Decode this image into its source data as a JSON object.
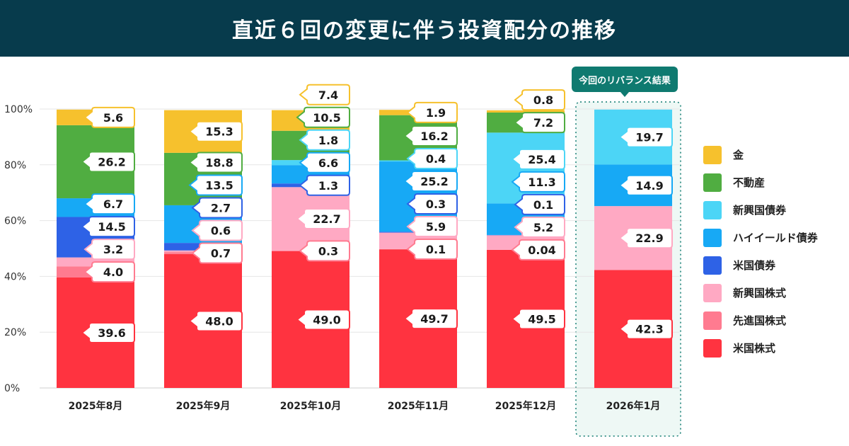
{
  "title": "直近６回の変更に伴う投資配分の推移",
  "callout": "今回のリバランス結果",
  "chart_data": {
    "type": "bar",
    "stacked": true,
    "categories": [
      "2025年8月",
      "2025年9月",
      "2025年10月",
      "2025年11月",
      "2025年12月",
      "2026年1月"
    ],
    "ylim": [
      0,
      100
    ],
    "yticks": [
      "0%",
      "20%",
      "40%",
      "60%",
      "80%",
      "100%"
    ],
    "highlight_index": 5,
    "series": [
      {
        "name": "米国株式",
        "color": "#ff3340",
        "values": [
          39.6,
          48.0,
          49.0,
          49.7,
          49.5,
          42.3
        ]
      },
      {
        "name": "先進国株式",
        "color": "#ff7b90",
        "values": [
          4.0,
          0.7,
          0.3,
          0.1,
          0.04,
          0
        ]
      },
      {
        "name": "新興国株式",
        "color": "#ffa9c3",
        "values": [
          3.2,
          0.6,
          22.7,
          5.9,
          5.2,
          22.9
        ]
      },
      {
        "name": "米国債券",
        "color": "#2e62e6",
        "values": [
          14.5,
          2.7,
          1.3,
          0.3,
          0.1,
          0
        ]
      },
      {
        "name": "ハイイールド債券",
        "color": "#17a9f5",
        "values": [
          6.7,
          13.5,
          6.6,
          25.2,
          11.3,
          14.9
        ]
      },
      {
        "name": "新興国債券",
        "color": "#4cd5f6",
        "values": [
          0,
          0,
          1.8,
          0.4,
          25.4,
          19.7
        ]
      },
      {
        "name": "不動産",
        "color": "#50ad41",
        "values": [
          26.2,
          18.8,
          10.5,
          16.2,
          7.2,
          0
        ]
      },
      {
        "name": "金",
        "color": "#f6c12d",
        "values": [
          5.6,
          15.3,
          7.4,
          1.9,
          0.8,
          0
        ]
      }
    ],
    "labels": [
      [
        {
          "s": 0,
          "t": "39.6"
        },
        {
          "s": 1,
          "t": "4.0"
        },
        {
          "s": 2,
          "t": "3.2"
        },
        {
          "s": 3,
          "t": "14.5"
        },
        {
          "s": 4,
          "t": "6.7"
        },
        {
          "s": 6,
          "t": "26.2"
        },
        {
          "s": 7,
          "t": "5.6"
        }
      ],
      [
        {
          "s": 0,
          "t": "48.0"
        },
        {
          "s": 1,
          "t": "0.7"
        },
        {
          "s": 2,
          "t": "0.6"
        },
        {
          "s": 3,
          "t": "2.7"
        },
        {
          "s": 4,
          "t": "13.5"
        },
        {
          "s": 6,
          "t": "18.8"
        },
        {
          "s": 7,
          "t": "15.3"
        }
      ],
      [
        {
          "s": 0,
          "t": "49.0"
        },
        {
          "s": 1,
          "t": "0.3"
        },
        {
          "s": 2,
          "t": "22.7"
        },
        {
          "s": 3,
          "t": "1.3"
        },
        {
          "s": 4,
          "t": "6.6"
        },
        {
          "s": 5,
          "t": "1.8"
        },
        {
          "s": 6,
          "t": "10.5"
        },
        {
          "s": 7,
          "t": "7.4"
        }
      ],
      [
        {
          "s": 0,
          "t": "49.7"
        },
        {
          "s": 1,
          "t": "0.1"
        },
        {
          "s": 2,
          "t": "5.9"
        },
        {
          "s": 3,
          "t": "0.3"
        },
        {
          "s": 4,
          "t": "25.2"
        },
        {
          "s": 5,
          "t": "0.4"
        },
        {
          "s": 6,
          "t": "16.2"
        },
        {
          "s": 7,
          "t": "1.9"
        }
      ],
      [
        {
          "s": 0,
          "t": "49.5"
        },
        {
          "s": 1,
          "t": "0.04"
        },
        {
          "s": 2,
          "t": "5.2"
        },
        {
          "s": 3,
          "t": "0.1"
        },
        {
          "s": 4,
          "t": "11.3"
        },
        {
          "s": 5,
          "t": "25.4"
        },
        {
          "s": 6,
          "t": "7.2"
        },
        {
          "s": 7,
          "t": "0.8"
        }
      ],
      [
        {
          "s": 0,
          "t": "42.3"
        },
        {
          "s": 2,
          "t": "22.9"
        },
        {
          "s": 4,
          "t": "14.9"
        },
        {
          "s": 5,
          "t": "19.7"
        }
      ]
    ]
  },
  "legend": {
    "items": [
      {
        "label": "金",
        "color": "#f6c12d"
      },
      {
        "label": "不動産",
        "color": "#50ad41"
      },
      {
        "label": "新興国債券",
        "color": "#4cd5f6"
      },
      {
        "label": "ハイイールド債券",
        "color": "#17a9f5"
      },
      {
        "label": "米国債券",
        "color": "#2e62e6"
      },
      {
        "label": "新興国株式",
        "color": "#ffa9c3"
      },
      {
        "label": "先進国株式",
        "color": "#ff7b90"
      },
      {
        "label": "米国株式",
        "color": "#ff3340"
      }
    ]
  }
}
